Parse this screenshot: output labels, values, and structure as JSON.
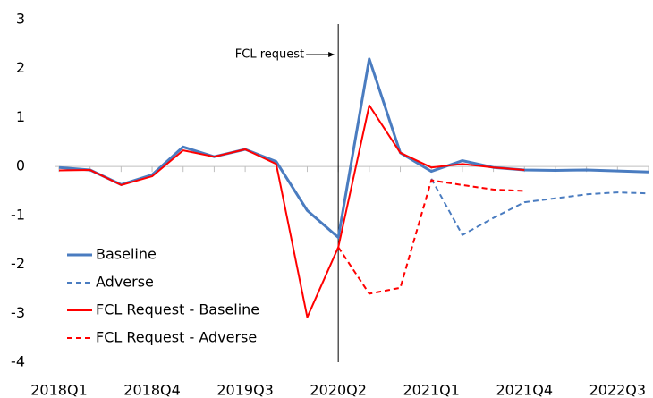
{
  "chart_data": {
    "type": "line",
    "categories": [
      "2018Q1",
      null,
      null,
      "2018Q4",
      null,
      null,
      "2019Q3",
      null,
      null,
      "2020Q2",
      null,
      null,
      "2021Q1",
      null,
      null,
      "2021Q4",
      null,
      null,
      "2022Q3",
      null
    ],
    "series": [
      {
        "name": "Baseline",
        "color": "#4a7cc0",
        "dashed": false,
        "values": [
          -0.02,
          -0.07,
          -0.37,
          -0.17,
          0.4,
          0.2,
          0.35,
          0.1,
          -0.9,
          -1.45,
          2.2,
          0.28,
          -0.1,
          0.12,
          -0.02,
          -0.07,
          -0.08,
          -0.07,
          -0.09,
          -0.11
        ]
      },
      {
        "name": "Adverse",
        "color": "#4a7cc0",
        "dashed": true,
        "values": [
          null,
          null,
          null,
          null,
          null,
          null,
          null,
          null,
          null,
          null,
          null,
          null,
          -0.25,
          -1.4,
          -1.05,
          -0.73,
          -0.65,
          -0.57,
          -0.53,
          -0.55
        ]
      },
      {
        "name": "FCL Request - Baseline",
        "color": "#ff0000",
        "dashed": false,
        "values": [
          -0.08,
          -0.07,
          -0.38,
          -0.2,
          0.33,
          0.2,
          0.35,
          0.05,
          -3.08,
          -1.65,
          1.25,
          0.28,
          -0.02,
          0.05,
          -0.02,
          -0.07,
          null,
          null,
          null,
          null
        ]
      },
      {
        "name": "FCL Request - Adverse",
        "color": "#ff0000",
        "dashed": true,
        "values": [
          null,
          null,
          null,
          null,
          null,
          null,
          null,
          null,
          null,
          -1.65,
          -2.6,
          -2.48,
          -0.28,
          -0.38,
          -0.47,
          -0.5,
          null,
          null,
          null,
          null
        ]
      }
    ],
    "ylim": [
      -4,
      3
    ],
    "yticks": [
      -4,
      -3,
      -2,
      -1,
      0,
      1,
      2,
      3
    ],
    "annotation": {
      "text": "FCL request",
      "at": "2020Q2"
    },
    "legend": "lower left"
  }
}
